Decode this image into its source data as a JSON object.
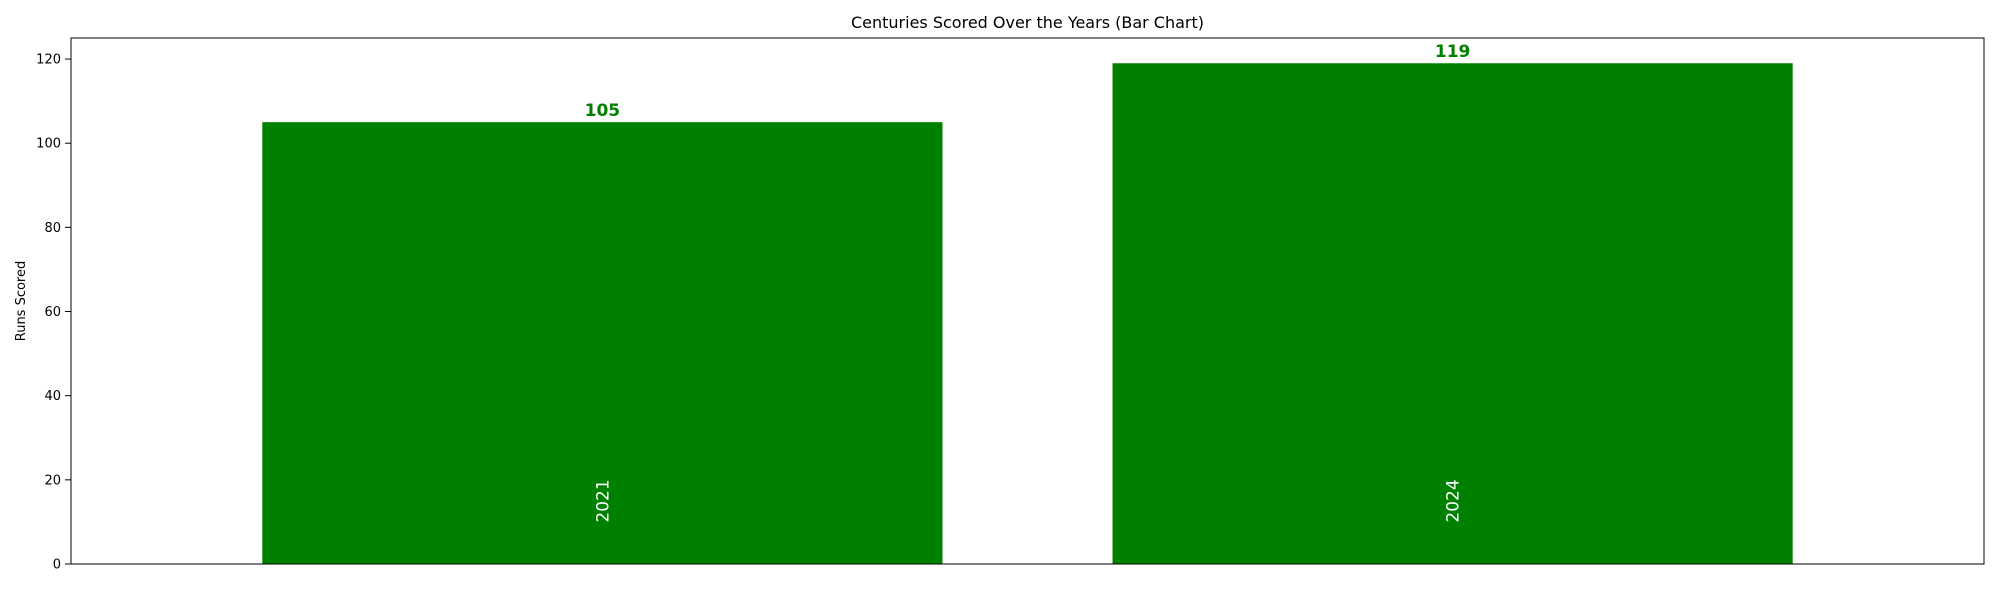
{
  "chart_data": {
    "type": "bar",
    "title": "Centuries Scored Over the Years (Bar Chart)",
    "xlabel": "",
    "ylabel": "Runs Scored",
    "categories": [
      "2021",
      "2024"
    ],
    "values": [
      105,
      119
    ],
    "value_labels": [
      "105",
      "119"
    ],
    "ylim": [
      0,
      125
    ],
    "yticks": [
      0,
      20,
      40,
      60,
      80,
      100,
      120
    ],
    "ytick_labels": [
      "0",
      "20",
      "40",
      "60",
      "80",
      "100",
      "120"
    ],
    "bar_color": "#008000",
    "value_label_color": "#008000",
    "category_label_color": "#ffffff",
    "category_labels_inside_bars": true,
    "grid": false,
    "legend": "none"
  }
}
